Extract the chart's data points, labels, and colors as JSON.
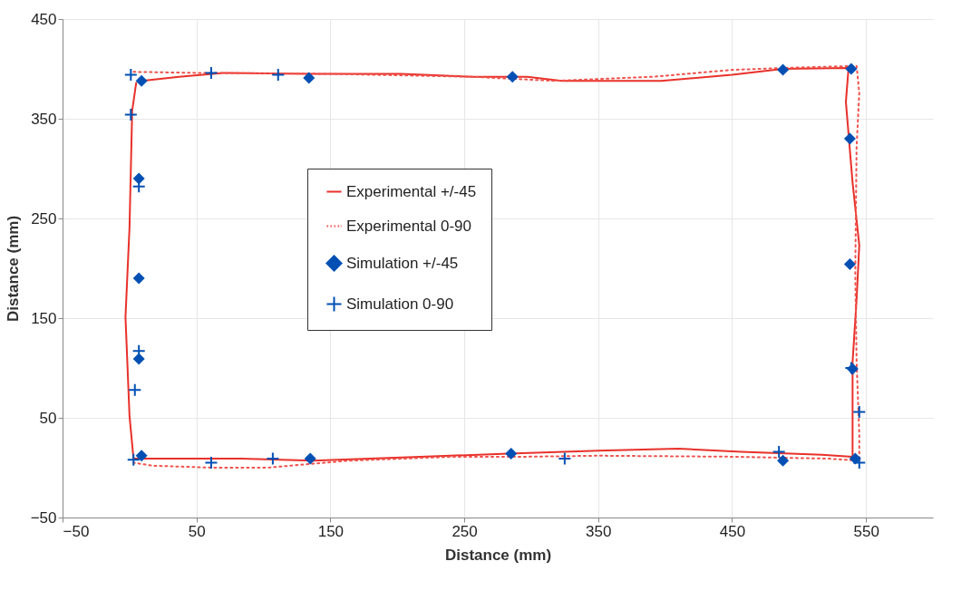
{
  "chart_data": {
    "type": "scatter",
    "xlabel": "Distance (mm)",
    "ylabel": "Distance (mm)",
    "xlim": [
      -50,
      600
    ],
    "xticks": [
      -50,
      50,
      150,
      250,
      350,
      450,
      550
    ],
    "ylim": [
      -50,
      450
    ],
    "yticks": [
      -50,
      50,
      150,
      250,
      350,
      450
    ],
    "grid": true,
    "legend": "left",
    "series": [
      {
        "name": "Experimental +/-45",
        "type": "line",
        "line_style": "solid",
        "color": "#e8312a",
        "x": [
          9,
          37,
          70,
          134,
          203,
          257,
          297,
          323,
          350,
          397,
          450,
          488,
          537,
          535,
          540,
          545,
          543,
          540,
          540,
          517,
          457,
          410,
          350,
          283,
          217,
          137,
          83,
          3,
          0,
          -3,
          0,
          2,
          5
        ],
        "values": [
          388,
          392,
          396,
          395,
          395,
          392,
          392,
          388,
          388,
          388,
          394,
          400,
          401,
          367,
          286,
          223,
          169,
          106,
          11,
          13,
          16,
          19,
          17,
          14,
          11,
          7,
          9,
          9,
          52,
          151,
          241,
          358,
          386
        ]
      },
      {
        "name": "Experimental 0-90",
        "type": "line",
        "line_style": "dotted",
        "color": "#f0524c",
        "x": [
          3,
          50,
          150,
          257,
          317,
          390,
          450,
          490,
          543,
          545,
          543,
          542,
          543,
          545,
          545,
          523,
          450,
          350,
          297,
          243,
          163,
          103,
          63,
          17,
          3
        ],
        "values": [
          397,
          396,
          395,
          392,
          388,
          392,
          399,
          401,
          403,
          376,
          322,
          196,
          106,
          34,
          7,
          9,
          11,
          12,
          11,
          11,
          7,
          0,
          0,
          2,
          5
        ]
      },
      {
        "name": "Simulation +/-45",
        "marker": "diamond",
        "color": "#0050b4",
        "x": [
          9,
          134,
          286,
          488,
          539,
          538,
          538,
          540,
          542,
          488,
          285,
          135,
          9,
          7,
          7,
          7
        ],
        "values": [
          388,
          391,
          392,
          399,
          400,
          330,
          204,
          99,
          9,
          7,
          14,
          9,
          12,
          109,
          190,
          290
        ]
      },
      {
        "name": "Simulation 0-90",
        "marker": "cross",
        "color": "#0050b4",
        "x": [
          1,
          1,
          7,
          7,
          4,
          3,
          61,
          107,
          325,
          485,
          545,
          545,
          539,
          61,
          111
        ],
        "values": [
          394,
          354,
          282,
          117,
          78,
          8,
          5,
          9,
          9,
          16,
          5,
          56,
          100,
          396,
          394
        ]
      }
    ]
  }
}
